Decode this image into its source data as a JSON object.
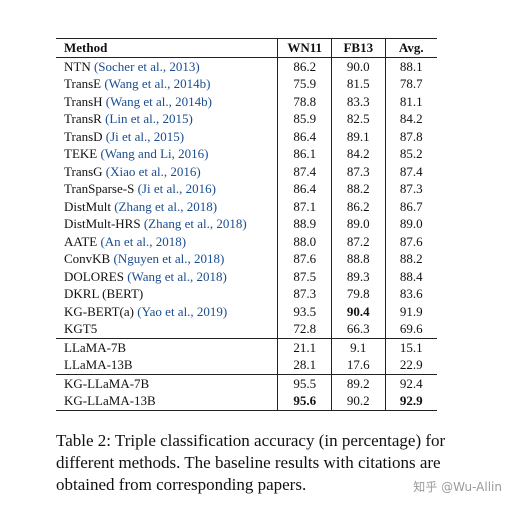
{
  "table": {
    "headers": [
      "Method",
      "WN11",
      "FB13",
      "Avg."
    ],
    "groups": [
      [
        {
          "method": "NTN",
          "cite": "(Socher et al., 2013)",
          "wn11": "86.2",
          "fb13": "90.0",
          "avg": "88.1"
        },
        {
          "method": "TransE",
          "cite": "(Wang et al., 2014b)",
          "wn11": "75.9",
          "fb13": "81.5",
          "avg": "78.7"
        },
        {
          "method": "TransH",
          "cite": "(Wang et al., 2014b)",
          "wn11": "78.8",
          "fb13": "83.3",
          "avg": "81.1"
        },
        {
          "method": "TransR",
          "cite": "(Lin et al., 2015)",
          "wn11": "85.9",
          "fb13": "82.5",
          "avg": "84.2"
        },
        {
          "method": "TransD",
          "cite": "(Ji et al., 2015)",
          "wn11": "86.4",
          "fb13": "89.1",
          "avg": "87.8"
        },
        {
          "method": "TEKE",
          "cite": "(Wang and Li, 2016)",
          "wn11": "86.1",
          "fb13": "84.2",
          "avg": "85.2"
        },
        {
          "method": "TransG",
          "cite": "(Xiao et al., 2016)",
          "wn11": "87.4",
          "fb13": "87.3",
          "avg": "87.4"
        },
        {
          "method": "TranSparse-S",
          "cite": "(Ji et al., 2016)",
          "wn11": "86.4",
          "fb13": "88.2",
          "avg": "87.3"
        },
        {
          "method": "DistMult",
          "cite": "(Zhang et al., 2018)",
          "wn11": "87.1",
          "fb13": "86.2",
          "avg": "86.7"
        },
        {
          "method": "DistMult-HRS",
          "cite": "(Zhang et al., 2018)",
          "wn11": "88.9",
          "fb13": "89.0",
          "avg": "89.0"
        },
        {
          "method": "AATE",
          "cite": "(An et al., 2018)",
          "wn11": "88.0",
          "fb13": "87.2",
          "avg": "87.6"
        },
        {
          "method": "ConvKB",
          "cite": "(Nguyen et al., 2018)",
          "wn11": "87.6",
          "fb13": "88.8",
          "avg": "88.2"
        },
        {
          "method": "DOLORES",
          "cite": "(Wang et al., 2018)",
          "wn11": "87.5",
          "fb13": "89.3",
          "avg": "88.4"
        },
        {
          "method": "DKRL (BERT)",
          "cite": "",
          "wn11": "87.3",
          "fb13": "79.8",
          "avg": "83.6"
        },
        {
          "method": "KG-BERT(a)",
          "cite": "(Yao et al., 2019)",
          "wn11": "93.5",
          "fb13": "90.4",
          "avg": "91.9",
          "bold": [
            "fb13"
          ]
        },
        {
          "method": "KGT5",
          "cite": "",
          "wn11": "72.8",
          "fb13": "66.3",
          "avg": "69.6"
        }
      ],
      [
        {
          "method": "LLaMA-7B",
          "cite": "",
          "wn11": "21.1",
          "fb13": "9.1",
          "avg": "15.1"
        },
        {
          "method": "LLaMA-13B",
          "cite": "",
          "wn11": "28.1",
          "fb13": "17.6",
          "avg": "22.9"
        }
      ],
      [
        {
          "method": "KG-LLaMA-7B",
          "cite": "",
          "wn11": "95.5",
          "fb13": "89.2",
          "avg": "92.4"
        },
        {
          "method": "KG-LLaMA-13B",
          "cite": "",
          "wn11": "95.6",
          "fb13": "90.2",
          "avg": "92.9",
          "bold": [
            "wn11",
            "avg"
          ]
        }
      ]
    ]
  },
  "caption": "Table 2: Triple classification accuracy (in percentage) for different methods. The baseline results with citations are obtained from corresponding papers.",
  "watermark": "知乎 @Wu-Allin",
  "colors": {
    "citation": "#1a4d8f",
    "rule": "#222222",
    "watermark": "#9a9a9a"
  }
}
